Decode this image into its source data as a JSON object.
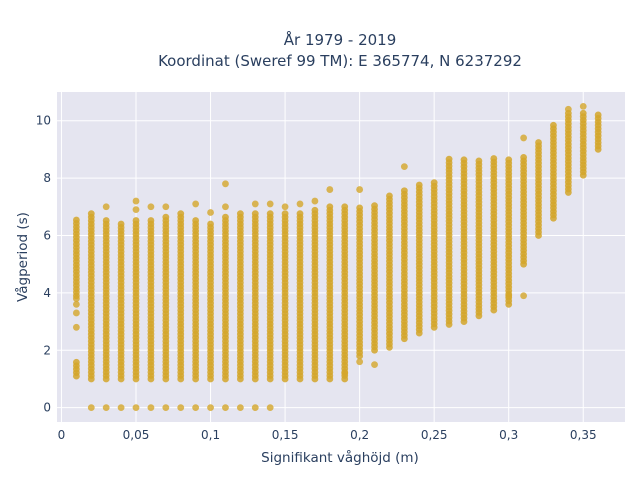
{
  "chart_data": {
    "type": "scatter",
    "title_line1": "År 1979 - 2019",
    "title_line2": "Koordinat (Sweref 99 TM): E 365774, N 6237292",
    "xlabel": "Signifikant våghöjd (m)",
    "ylabel": "Vågperiod (s)",
    "xlim": [
      -0.003,
      0.378
    ],
    "ylim": [
      -0.5,
      11.0
    ],
    "x_ticks": [
      0,
      0.05,
      0.1,
      0.15,
      0.2,
      0.25,
      0.3,
      0.35
    ],
    "x_tick_labels": [
      "0",
      "0,05",
      "0,1",
      "0,15",
      "0,2",
      "0,25",
      "0,3",
      "0,35"
    ],
    "y_ticks": [
      0,
      2,
      4,
      6,
      8,
      10
    ],
    "y_tick_labels": [
      "0",
      "2",
      "4",
      "6",
      "8",
      "10"
    ],
    "grid": true,
    "marker_color": "#d4a62a",
    "plot_background": "#e5e5f0",
    "columns": [
      {
        "x": 0.01,
        "y_min": 1.1,
        "y_max": 1.6,
        "y_min2": 3.9,
        "y_max2": 6.6,
        "outliers": [
          2.8,
          3.3,
          3.6,
          3.8
        ]
      },
      {
        "x": 0.02,
        "y_min": 1.0,
        "y_max": 6.8,
        "outliers": [
          0.0
        ]
      },
      {
        "x": 0.03,
        "y_min": 1.0,
        "y_max": 6.6,
        "outliers": [
          0.0,
          7.0
        ]
      },
      {
        "x": 0.04,
        "y_min": 1.0,
        "y_max": 6.5,
        "outliers": [
          0.0
        ]
      },
      {
        "x": 0.05,
        "y_min": 1.0,
        "y_max": 6.6,
        "outliers": [
          0.0,
          6.9,
          7.2
        ]
      },
      {
        "x": 0.06,
        "y_min": 1.0,
        "y_max": 6.6,
        "outliers": [
          0.0,
          7.0
        ]
      },
      {
        "x": 0.07,
        "y_min": 1.0,
        "y_max": 6.7,
        "outliers": [
          0.0,
          7.0
        ]
      },
      {
        "x": 0.08,
        "y_min": 1.0,
        "y_max": 6.8,
        "outliers": [
          0.0
        ]
      },
      {
        "x": 0.09,
        "y_min": 1.0,
        "y_max": 6.6,
        "outliers": [
          0.0,
          7.1
        ]
      },
      {
        "x": 0.1,
        "y_min": 1.0,
        "y_max": 6.5,
        "outliers": [
          0.0,
          6.8
        ]
      },
      {
        "x": 0.11,
        "y_min": 1.0,
        "y_max": 6.7,
        "outliers": [
          0.0,
          7.0,
          7.8
        ]
      },
      {
        "x": 0.12,
        "y_min": 1.0,
        "y_max": 6.8,
        "outliers": [
          0.0
        ]
      },
      {
        "x": 0.13,
        "y_min": 1.0,
        "y_max": 6.8,
        "outliers": [
          0.0,
          7.1
        ]
      },
      {
        "x": 0.14,
        "y_min": 1.0,
        "y_max": 6.8,
        "outliers": [
          0.0,
          7.1
        ]
      },
      {
        "x": 0.15,
        "y_min": 1.0,
        "y_max": 6.8,
        "outliers": [
          7.0
        ]
      },
      {
        "x": 0.16,
        "y_min": 1.0,
        "y_max": 6.8,
        "outliers": [
          7.1
        ]
      },
      {
        "x": 0.17,
        "y_min": 1.0,
        "y_max": 6.9,
        "outliers": [
          7.2
        ]
      },
      {
        "x": 0.18,
        "y_min": 1.0,
        "y_max": 7.0,
        "outliers": [
          7.6
        ]
      },
      {
        "x": 0.19,
        "y_min": 1.0,
        "y_max": 7.0,
        "outliers": [
          1.2
        ]
      },
      {
        "x": 0.2,
        "y_min": 1.8,
        "y_max": 7.0,
        "outliers": [
          1.6,
          7.6
        ]
      },
      {
        "x": 0.21,
        "y_min": 2.0,
        "y_max": 7.1,
        "outliers": [
          1.5
        ]
      },
      {
        "x": 0.22,
        "y_min": 2.1,
        "y_max": 7.4,
        "outliers": []
      },
      {
        "x": 0.23,
        "y_min": 2.4,
        "y_max": 7.6,
        "outliers": [
          8.4
        ]
      },
      {
        "x": 0.24,
        "y_min": 2.6,
        "y_max": 7.8,
        "outliers": []
      },
      {
        "x": 0.25,
        "y_min": 2.8,
        "y_max": 7.9,
        "outliers": []
      },
      {
        "x": 0.26,
        "y_min": 2.9,
        "y_max": 8.7,
        "outliers": []
      },
      {
        "x": 0.27,
        "y_min": 3.0,
        "y_max": 8.7,
        "outliers": []
      },
      {
        "x": 0.28,
        "y_min": 3.2,
        "y_max": 8.6,
        "outliers": []
      },
      {
        "x": 0.29,
        "y_min": 3.4,
        "y_max": 8.7,
        "outliers": []
      },
      {
        "x": 0.3,
        "y_min": 3.6,
        "y_max": 8.7,
        "outliers": [
          3.9
        ]
      },
      {
        "x": 0.31,
        "y_min": 5.0,
        "y_max": 8.8,
        "outliers": [
          3.9,
          9.4
        ]
      },
      {
        "x": 0.32,
        "y_min": 6.0,
        "y_max": 9.3,
        "outliers": []
      },
      {
        "x": 0.33,
        "y_min": 6.6,
        "y_max": 9.9,
        "outliers": []
      },
      {
        "x": 0.34,
        "y_min": 7.5,
        "y_max": 10.3,
        "outliers": [
          10.4
        ]
      },
      {
        "x": 0.35,
        "y_min": 8.1,
        "y_max": 10.3,
        "outliers": [
          10.5
        ]
      },
      {
        "x": 0.36,
        "y_min": 9.0,
        "y_max": 10.3,
        "outliers": []
      }
    ]
  }
}
